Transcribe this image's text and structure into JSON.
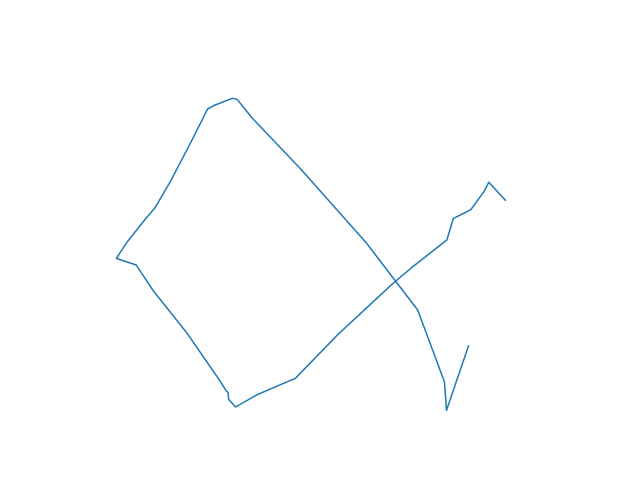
{
  "chart_data": {
    "type": "line",
    "title": "",
    "xlabel": "",
    "ylabel": "",
    "axes_visible": false,
    "grid": false,
    "legend": "none",
    "xlim": [
      0,
      1
    ],
    "ylim": [
      0,
      1
    ],
    "series": [
      {
        "color": "#1f77b4",
        "x": [
          0.8113,
          0.7625,
          0.7582,
          0.6988,
          0.5855,
          0.4414,
          0.3312,
          0.2986,
          0.288,
          0.2471,
          0.233,
          0.1963,
          0.1517,
          0.1174,
          0.0937,
          0.0543,
          0.031,
          0.075,
          0.1132,
          0.1885,
          0.2613,
          0.2738,
          0.2787,
          0.2797,
          0.295,
          0.3442,
          0.4277,
          0.5203,
          0.6427,
          0.688,
          0.7635,
          0.7777,
          0.8167,
          0.8458,
          0.8562,
          0.8928
        ],
        "y": [
          0.1921,
          0.0,
          0.0846,
          0.2989,
          0.4975,
          0.7158,
          0.8721,
          0.9265,
          0.9293,
          0.9081,
          0.8969,
          0.7987,
          0.6841,
          0.6045,
          0.5669,
          0.5,
          0.4527,
          0.4331,
          0.3559,
          0.2283,
          0.0865,
          0.0595,
          0.0532,
          0.033,
          0.01,
          0.0475,
          0.0956,
          0.2239,
          0.3768,
          0.4282,
          0.5076,
          0.5713,
          0.5981,
          0.6522,
          0.6794,
          0.6261
        ]
      }
    ]
  }
}
